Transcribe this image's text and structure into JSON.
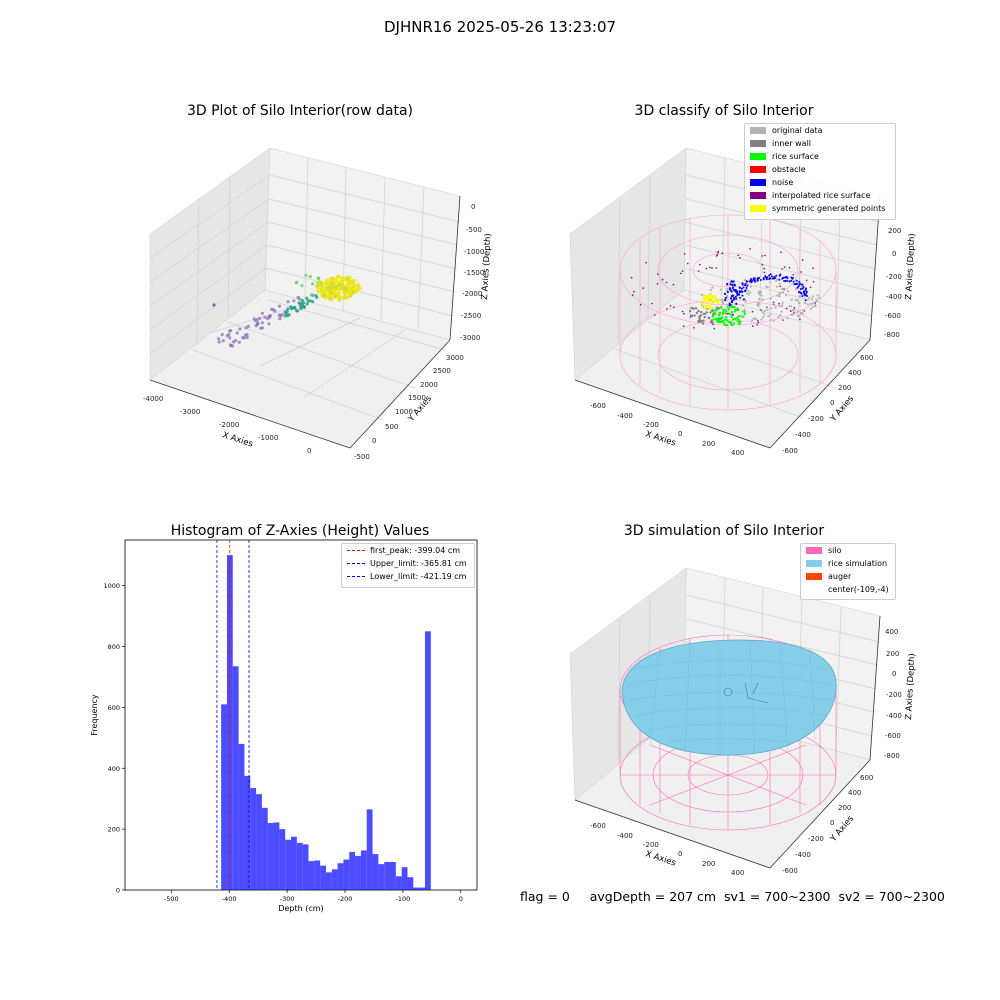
{
  "suptitle": "DJHNR16 2025-05-26 13:23:07",
  "panels": {
    "raw": {
      "title": "3D Plot of Silo Interior(row data)",
      "xlabel": "X Axies",
      "ylabel": "Y Axies",
      "zlabel": "Z Axies (Depth)",
      "xticks": [
        "-4000",
        "-3000",
        "-2000",
        "-1000",
        "0"
      ],
      "yticks": [
        "-500",
        "0",
        "500",
        "1000",
        "1500",
        "2000",
        "2500",
        "3000"
      ],
      "zticks": [
        "0",
        "-500",
        "-1000",
        "-1500",
        "-2000",
        "-2500",
        "-3000"
      ]
    },
    "classify": {
      "title": "3D classify of Silo Interior",
      "xlabel": "X Axies",
      "ylabel": "Y Axies",
      "zlabel": "Z Axies (Depth)",
      "xticks": [
        "-600",
        "-400",
        "-200",
        "0",
        "200",
        "400"
      ],
      "yticks": [
        "-600",
        "-400",
        "-200",
        "0",
        "200",
        "400",
        "600"
      ],
      "zticks": [
        "200",
        "0",
        "-200",
        "-400",
        "-600",
        "-800"
      ],
      "legend": [
        {
          "label": "original data",
          "color": "#b3b3b3"
        },
        {
          "label": "inner wall",
          "color": "#808080"
        },
        {
          "label": "rice surface",
          "color": "#00ff00"
        },
        {
          "label": "obstacle",
          "color": "#ff0000"
        },
        {
          "label": "noise",
          "color": "#0000ee"
        },
        {
          "label": "interpolated rice surface",
          "color": "#800080"
        },
        {
          "label": "symmetric generated points",
          "color": "#ffff00"
        }
      ]
    },
    "histogram": {
      "title": "Histogram of Z-Axies (Height) Values",
      "xlabel": "Depth (cm)",
      "ylabel": "Frequency",
      "legend": [
        {
          "label": "first_peak: -399.04 cm",
          "color": "#ff0000"
        },
        {
          "label": "Upper_limit: -365.81 cm",
          "color": "#0000ff"
        },
        {
          "label": "Lower_limit: -421.19 cm",
          "color": "#0000ff"
        }
      ]
    },
    "simulation": {
      "title": "3D simulation of Silo Interior",
      "xlabel": "X Axies",
      "ylabel": "Y Axies",
      "zlabel": "Z Axies (Depth)",
      "xticks": [
        "-600",
        "-400",
        "-200",
        "0",
        "200",
        "400"
      ],
      "yticks": [
        "-600",
        "-400",
        "-200",
        "0",
        "200",
        "400",
        "600"
      ],
      "zticks": [
        "400",
        "200",
        "0",
        "-200",
        "-400",
        "-600",
        "-800"
      ],
      "legend": [
        {
          "label": "silo",
          "color": "#ff69b4"
        },
        {
          "label": "rice simulation",
          "color": "#87ceeb"
        },
        {
          "label": "auger",
          "color": "#ff4500"
        },
        {
          "label": "center(-109,-4)",
          "color": ""
        }
      ]
    }
  },
  "footer": {
    "flag": "flag = 0",
    "avg_depth": "avgDepth = 207 cm",
    "sv1": "sv1 = 700~2300",
    "sv2": "sv2 = 700~2300"
  },
  "chart_data": [
    {
      "type": "scatter",
      "title": "3D Plot of Silo Interior(row data)",
      "xlabel": "X Axies",
      "ylabel": "Y Axies",
      "zlabel": "Z Axies (Depth)",
      "xlim": [
        -4000,
        500
      ],
      "ylim": [
        -500,
        3000
      ],
      "zlim": [
        -3000,
        0
      ]
    },
    {
      "type": "scatter",
      "title": "3D classify of Silo Interior",
      "xlabel": "X Axies",
      "ylabel": "Y Axies",
      "zlabel": "Z Axies (Depth)",
      "series": [
        {
          "name": "original data"
        },
        {
          "name": "inner wall"
        },
        {
          "name": "rice surface"
        },
        {
          "name": "obstacle"
        },
        {
          "name": "noise"
        },
        {
          "name": "interpolated rice surface"
        },
        {
          "name": "symmetric generated points"
        }
      ]
    },
    {
      "type": "bar",
      "title": "Histogram of Z-Axies (Height) Values",
      "xlabel": "Depth (cm)",
      "ylabel": "Frequency",
      "xlim": [
        -580,
        28
      ],
      "ylim": [
        0,
        1150
      ],
      "xticks": [
        -500,
        -400,
        -300,
        -200,
        -100,
        0
      ],
      "yticks": [
        0,
        200,
        400,
        600,
        800,
        1000
      ],
      "bin_width": 10.06,
      "bin_start": -413.94,
      "values": [
        610,
        1100,
        735,
        480,
        375,
        335,
        315,
        270,
        220,
        222,
        200,
        165,
        175,
        155,
        150,
        95,
        97,
        80,
        58,
        68,
        88,
        100,
        125,
        112,
        130,
        265,
        118,
        85,
        92,
        92,
        45,
        75,
        42,
        8,
        8,
        850
      ],
      "vlines": [
        {
          "name": "first_peak: -399.04 cm",
          "x": -399.04,
          "color": "#ff0000"
        },
        {
          "name": "Upper_limit: -365.81 cm",
          "x": -365.81,
          "color": "#0000ff"
        },
        {
          "name": "Lower_limit: -421.19 cm",
          "x": -421.19,
          "color": "#0000ff"
        }
      ]
    },
    {
      "type": "area",
      "title": "3D simulation of Silo Interior",
      "xlabel": "X Axies",
      "ylabel": "Y Axies",
      "zlabel": "Z Axies (Depth)",
      "series": [
        {
          "name": "silo"
        },
        {
          "name": "rice simulation"
        },
        {
          "name": "auger"
        }
      ]
    }
  ]
}
